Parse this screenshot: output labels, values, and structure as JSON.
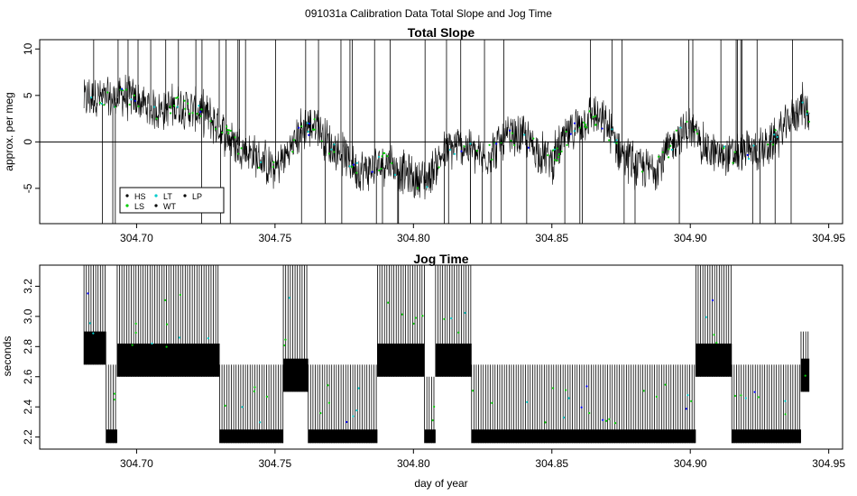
{
  "figure": {
    "suptitle": "091031a   Calibration Data Total Slope and Jog Time",
    "xlabel": "day of year"
  },
  "chart_data": [
    {
      "type": "line",
      "title": "Total Slope",
      "xlabel": "",
      "ylabel": "approx. per meg",
      "xlim": [
        304.665,
        304.955
      ],
      "ylim": [
        -8.8,
        11
      ],
      "x_ticks": [
        304.7,
        304.75,
        304.8,
        304.85,
        304.9,
        304.95
      ],
      "x_tick_labels": [
        "304.70",
        "304.75",
        "304.80",
        "304.85",
        "304.90",
        "304.95"
      ],
      "y_ticks": [
        -5,
        0,
        5,
        10
      ],
      "y_tick_labels": [
        "-5",
        "0",
        "5",
        "10"
      ],
      "x_range_of_data": [
        304.681,
        304.943
      ],
      "reference_line_y": 0,
      "grid": false,
      "legend_position": "bottom-left",
      "legend": [
        {
          "label": "HS",
          "color": "#000000"
        },
        {
          "label": "LS",
          "color": "#00cc00"
        },
        {
          "label": "LT",
          "color": "#00cccc"
        },
        {
          "label": "WT",
          "color": "#000000"
        },
        {
          "label": "LP",
          "color": "#000000"
        }
      ],
      "series": [
        {
          "name": "slope",
          "color": "#000000",
          "x": [
            304.681,
            304.685,
            304.69,
            304.695,
            304.7,
            304.705,
            304.71,
            304.715,
            304.72,
            304.725,
            304.73,
            304.735,
            304.74,
            304.745,
            304.75,
            304.755,
            304.76,
            304.765,
            304.77,
            304.775,
            304.78,
            304.785,
            304.79,
            304.795,
            304.8,
            304.805,
            304.81,
            304.815,
            304.82,
            304.825,
            304.83,
            304.835,
            304.84,
            304.845,
            304.85,
            304.855,
            304.86,
            304.865,
            304.87,
            304.875,
            304.88,
            304.885,
            304.89,
            304.895,
            304.9,
            304.905,
            304.91,
            304.915,
            304.92,
            304.925,
            304.93,
            304.935,
            304.94,
            304.943
          ],
          "values": [
            4.5,
            5.0,
            4.5,
            5.0,
            4.5,
            3.5,
            3.5,
            4.0,
            3.5,
            3.0,
            1.5,
            0.0,
            -1.0,
            -2.0,
            -3.0,
            -1.0,
            1.5,
            2.0,
            -0.5,
            -1.5,
            -3.0,
            -3.0,
            -2.0,
            -3.0,
            -4.0,
            -4.0,
            -1.5,
            -0.5,
            -0.5,
            -2.0,
            -0.5,
            0.5,
            0.5,
            -1.0,
            -2.0,
            0.5,
            2.0,
            3.0,
            1.5,
            -1.0,
            -2.5,
            -3.0,
            -2.0,
            0.5,
            1.5,
            -0.5,
            -1.5,
            -1.5,
            -1.0,
            -1.0,
            0.0,
            2.0,
            4.0,
            3.0
          ]
        }
      ]
    },
    {
      "type": "line",
      "title": "Jog Time",
      "xlabel": "day of year",
      "ylabel": "seconds",
      "xlim": [
        304.665,
        304.955
      ],
      "ylim": [
        2.12,
        3.34
      ],
      "x_ticks": [
        304.7,
        304.75,
        304.8,
        304.85,
        304.9,
        304.95
      ],
      "x_tick_labels": [
        "304.70",
        "304.75",
        "304.80",
        "304.85",
        "304.90",
        "304.95"
      ],
      "y_ticks": [
        2.2,
        2.4,
        2.6,
        2.8,
        3.0,
        3.2
      ],
      "y_tick_labels": [
        "2.2",
        "2.4",
        "2.6",
        "2.8",
        "3.0",
        "3.2"
      ],
      "grid": false,
      "segments": [
        {
          "x_start": 304.681,
          "x_end": 304.689,
          "low": 2.68,
          "high": 3.34
        },
        {
          "x_start": 304.689,
          "x_end": 304.693,
          "low": 2.16,
          "high": 2.68
        },
        {
          "x_start": 304.693,
          "x_end": 304.73,
          "low": 2.6,
          "high": 3.34
        },
        {
          "x_start": 304.73,
          "x_end": 304.753,
          "low": 2.16,
          "high": 2.68
        },
        {
          "x_start": 304.753,
          "x_end": 304.762,
          "low": 2.5,
          "high": 3.34
        },
        {
          "x_start": 304.762,
          "x_end": 304.787,
          "low": 2.16,
          "high": 2.68
        },
        {
          "x_start": 304.787,
          "x_end": 304.804,
          "low": 2.6,
          "high": 3.34
        },
        {
          "x_start": 304.804,
          "x_end": 304.808,
          "low": 2.16,
          "high": 2.6
        },
        {
          "x_start": 304.808,
          "x_end": 304.821,
          "low": 2.6,
          "high": 3.34
        },
        {
          "x_start": 304.821,
          "x_end": 304.902,
          "low": 2.16,
          "high": 2.68
        },
        {
          "x_start": 304.902,
          "x_end": 304.915,
          "low": 2.6,
          "high": 3.34
        },
        {
          "x_start": 304.915,
          "x_end": 304.94,
          "low": 2.16,
          "high": 2.68
        },
        {
          "x_start": 304.94,
          "x_end": 304.943,
          "low": 2.5,
          "high": 2.9
        }
      ]
    }
  ]
}
